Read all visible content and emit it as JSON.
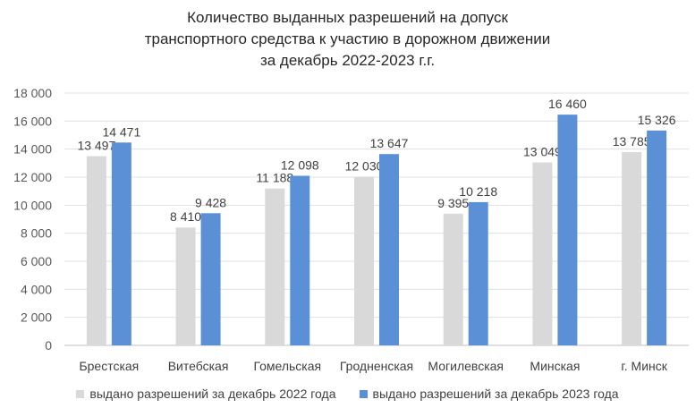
{
  "chart_data": {
    "type": "bar",
    "title_lines": [
      "Количество выданных разрешений на допуск",
      "транспортного средства к участию в дорожном движении",
      "за декабрь 2022-2023 г.г."
    ],
    "categories": [
      "Брестская",
      "Витебская",
      "Гомельская",
      "Гродненская",
      "Могилевская",
      "Минская",
      "г. Минск"
    ],
    "series": [
      {
        "name": "выдано разрешений за декабрь 2022 года",
        "color": "#d9d9d9",
        "values": [
          13497,
          8410,
          11188,
          12030,
          9395,
          13049,
          13785
        ],
        "labels": [
          "13 497",
          "8 410",
          "11 188",
          "12 030",
          "9 395",
          "13 049",
          "13 785"
        ]
      },
      {
        "name": "выдано разрешений за декабрь 2023 года",
        "color": "#5b8fd6",
        "values": [
          14471,
          9428,
          12098,
          13647,
          10218,
          16460,
          15326
        ],
        "labels": [
          "14 471",
          "9 428",
          "12 098",
          "13 647",
          "10 218",
          "16 460",
          "15 326"
        ]
      }
    ],
    "ylim": [
      0,
      18000
    ],
    "yticks": [
      0,
      2000,
      4000,
      6000,
      8000,
      10000,
      12000,
      14000,
      16000,
      18000
    ],
    "ytick_labels": [
      "0",
      "2 000",
      "4 000",
      "6 000",
      "8 000",
      "10 000",
      "12 000",
      "14 000",
      "16 000",
      "18 000"
    ],
    "grid": true,
    "legend_position": "bottom"
  }
}
